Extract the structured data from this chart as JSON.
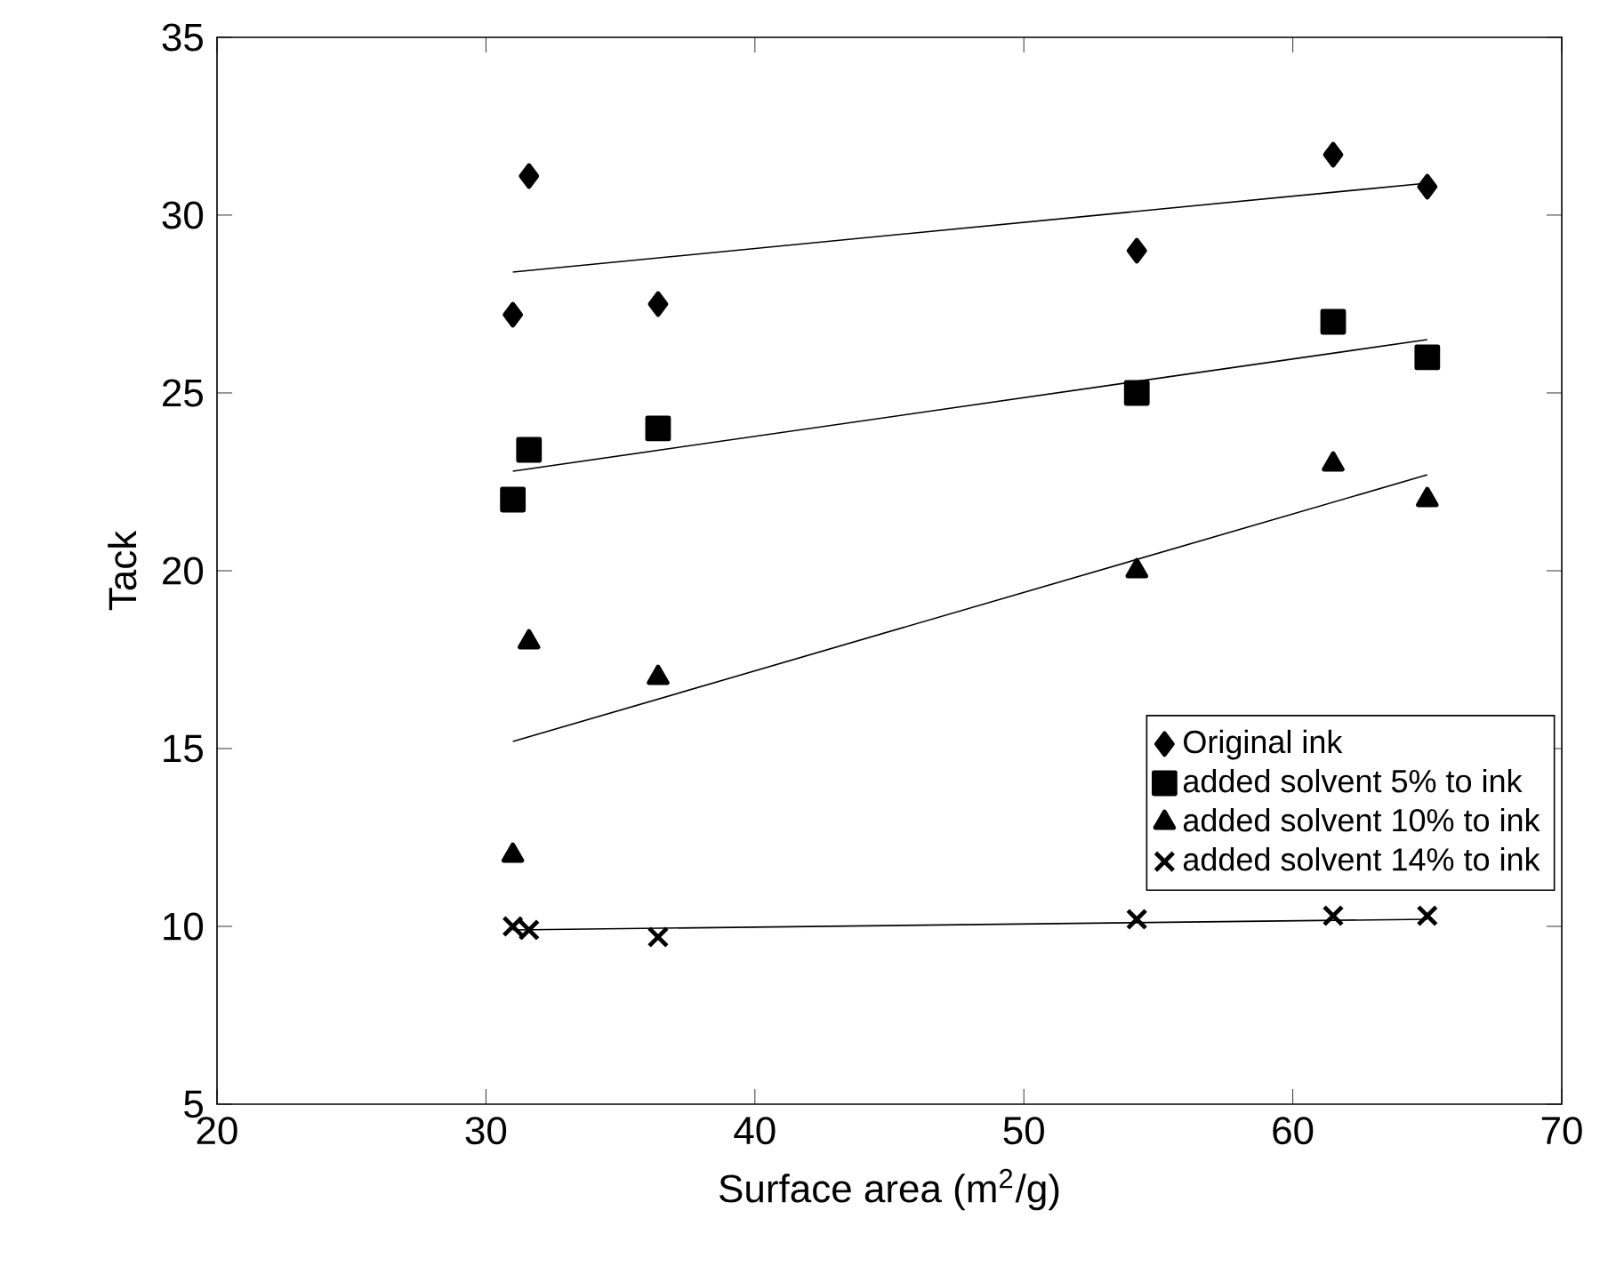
{
  "chart_data": {
    "type": "scatter",
    "xlabel": "Surface area (m$^{2}$/g)",
    "ylabel": "Tack",
    "xlim": [
      20,
      70
    ],
    "xticks": [
      20,
      30,
      40,
      50,
      60,
      70
    ],
    "ylim": [
      5,
      35
    ],
    "yticks": [
      5,
      10,
      15,
      20,
      25,
      30,
      35
    ],
    "grid": false,
    "legend": "bottom right",
    "series": [
      {
        "name": "Original ink",
        "color": "#000000",
        "marker": "diamond",
        "x": [
          31,
          31.6,
          36.4,
          54.2,
          61.5,
          65
        ],
        "values": [
          27.2,
          31.1,
          27.5,
          29,
          31.7,
          30.8
        ]
      },
      {
        "name": "added solvent 5% to ink",
        "color": "#000000",
        "marker": "square",
        "x": [
          31,
          31.6,
          36.4,
          54.2,
          61.5,
          65
        ],
        "values": [
          22,
          23.4,
          24,
          25,
          27,
          26
        ]
      },
      {
        "name": "added solvent 10% to ink",
        "color": "#000000",
        "marker": "triangle",
        "x": [
          31,
          31.6,
          36.4,
          54.2,
          61.5,
          65
        ],
        "values": [
          12,
          18,
          17,
          20,
          23,
          22
        ]
      },
      {
        "name": "added solvent 14% to ink",
        "color": "#000000",
        "marker": "cross",
        "x": [
          31,
          31.6,
          36.4,
          54.2,
          61.5,
          65
        ],
        "values": [
          10,
          9.9,
          9.7,
          10.2,
          10.3,
          10.3
        ]
      },
      {
        "type": "line",
        "color": "#000000",
        "marker": "none",
        "line_style": "solid",
        "x": [
          31,
          65
        ],
        "values": [
          28.4,
          30.9
        ]
      },
      {
        "type": "line",
        "color": "#000000",
        "marker": "none",
        "line_style": "solid",
        "x": [
          31,
          65
        ],
        "values": [
          22.8,
          26.5
        ]
      },
      {
        "type": "line",
        "color": "#000000",
        "marker": "none",
        "line_style": "solid",
        "x": [
          31,
          65
        ],
        "values": [
          15.2,
          22.7
        ]
      },
      {
        "type": "line",
        "color": "#000000",
        "marker": "none",
        "line_style": "solid",
        "x": [
          31,
          65
        ],
        "values": [
          9.9,
          10.2
        ]
      }
    ]
  }
}
